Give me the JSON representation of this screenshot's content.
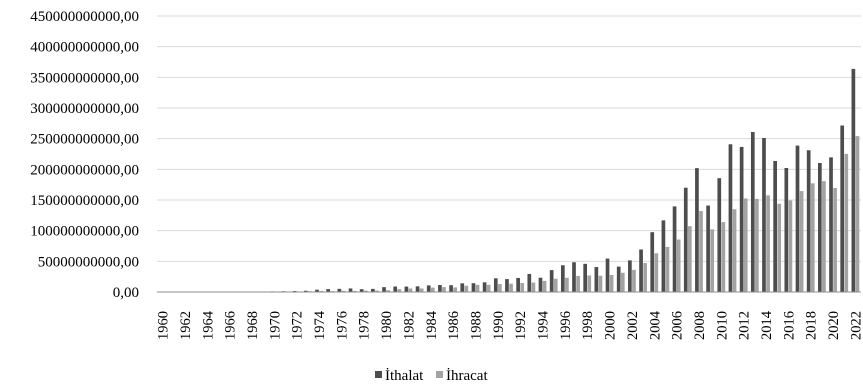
{
  "chart_data": {
    "type": "bar",
    "title": "",
    "xlabel": "",
    "ylabel": "",
    "ylim": [
      0,
      450000000000
    ],
    "y_ticks": [
      "0,00",
      "50000000000,00",
      "100000000000,00",
      "150000000000,00",
      "200000000000,00",
      "250000000000,00",
      "300000000000,00",
      "350000000000,00",
      "400000000000,00",
      "450000000000,00"
    ],
    "y_tick_values": [
      0,
      50000000000,
      100000000000,
      150000000000,
      200000000000,
      250000000000,
      300000000000,
      350000000000,
      400000000000,
      450000000000
    ],
    "x_tick_labels": [
      "1960",
      "1962",
      "1964",
      "1966",
      "1968",
      "1970",
      "1972",
      "1974",
      "1976",
      "1978",
      "1980",
      "1982",
      "1984",
      "1986",
      "1988",
      "1990",
      "1992",
      "1994",
      "1996",
      "1998",
      "2000",
      "2002",
      "2004",
      "2006",
      "2008",
      "2010",
      "2012",
      "2014",
      "2016",
      "2018",
      "2020",
      "2022"
    ],
    "grid": true,
    "legend_position": "bottom",
    "colors": {
      "ithalat": "#4d4d4d",
      "ihracat": "#a3a3a3"
    },
    "categories": [
      "1960",
      "1961",
      "1962",
      "1963",
      "1964",
      "1965",
      "1966",
      "1967",
      "1968",
      "1969",
      "1970",
      "1971",
      "1972",
      "1973",
      "1974",
      "1975",
      "1976",
      "1977",
      "1978",
      "1979",
      "1980",
      "1981",
      "1982",
      "1983",
      "1984",
      "1985",
      "1986",
      "1987",
      "1988",
      "1989",
      "1990",
      "1991",
      "1992",
      "1993",
      "1994",
      "1995",
      "1996",
      "1997",
      "1998",
      "1999",
      "2000",
      "2001",
      "2002",
      "2003",
      "2004",
      "2005",
      "2006",
      "2007",
      "2008",
      "2009",
      "2010",
      "2011",
      "2012",
      "2013",
      "2014",
      "2015",
      "2016",
      "2017",
      "2018",
      "2019",
      "2020",
      "2021",
      "2022"
    ],
    "series": [
      {
        "name": "İthalat",
        "values": [
          468000000,
          507000000,
          619000000,
          688000000,
          537000000,
          572000000,
          718000000,
          685000000,
          764000000,
          801000000,
          948000000,
          1171000000,
          1563000000,
          2086000000,
          3778000000,
          4739000000,
          5129000000,
          5796000000,
          4599000000,
          5070000000,
          7909000000,
          8933000000,
          8843000000,
          9235000000,
          10757000000,
          11343000000,
          11105000000,
          14158000000,
          14335000000,
          15792000000,
          22302000000,
          21047000000,
          22871000000,
          29428000000,
          23270000000,
          35709000000,
          43627000000,
          48559000000,
          45921000000,
          40671000000,
          54503000000,
          41399000000,
          51554000000,
          69340000000,
          97540000000,
          116774000000,
          139576000000,
          170063000000,
          201964000000,
          140928000000,
          185544000000,
          240842000000,
          236545000000,
          260823000000,
          251142000000,
          213619000000,
          202189000000,
          238715000000,
          231152000000,
          210345000000,
          219517000000,
          271426000000,
          363711000000
        ]
      },
      {
        "name": "İhracat",
        "values": [
          321000000,
          347000000,
          381000000,
          368000000,
          411000000,
          464000000,
          490000000,
          523000000,
          496000000,
          537000000,
          588000000,
          677000000,
          885000000,
          1317000000,
          1532000000,
          1401000000,
          1960000000,
          1753000000,
          2288000000,
          2261000000,
          2910000000,
          4703000000,
          5746000000,
          5728000000,
          7134000000,
          7958000000,
          7457000000,
          10190000000,
          11662000000,
          11625000000,
          12959000000,
          13594000000,
          14715000000,
          15345000000,
          18106000000,
          21637000000,
          23225000000,
          26261000000,
          26974000000,
          26587000000,
          27775000000,
          31334000000,
          36059000000,
          47253000000,
          63167000000,
          73476000000,
          85535000000,
          107272000000,
          132027000000,
          102143000000,
          113883000000,
          134907000000,
          152462000000,
          151803000000,
          157610000000,
          143839000000,
          149247000000,
          164495000000,
          177169000000,
          180833000000,
          169638000000,
          225214000000,
          254172000000
        ]
      }
    ]
  }
}
